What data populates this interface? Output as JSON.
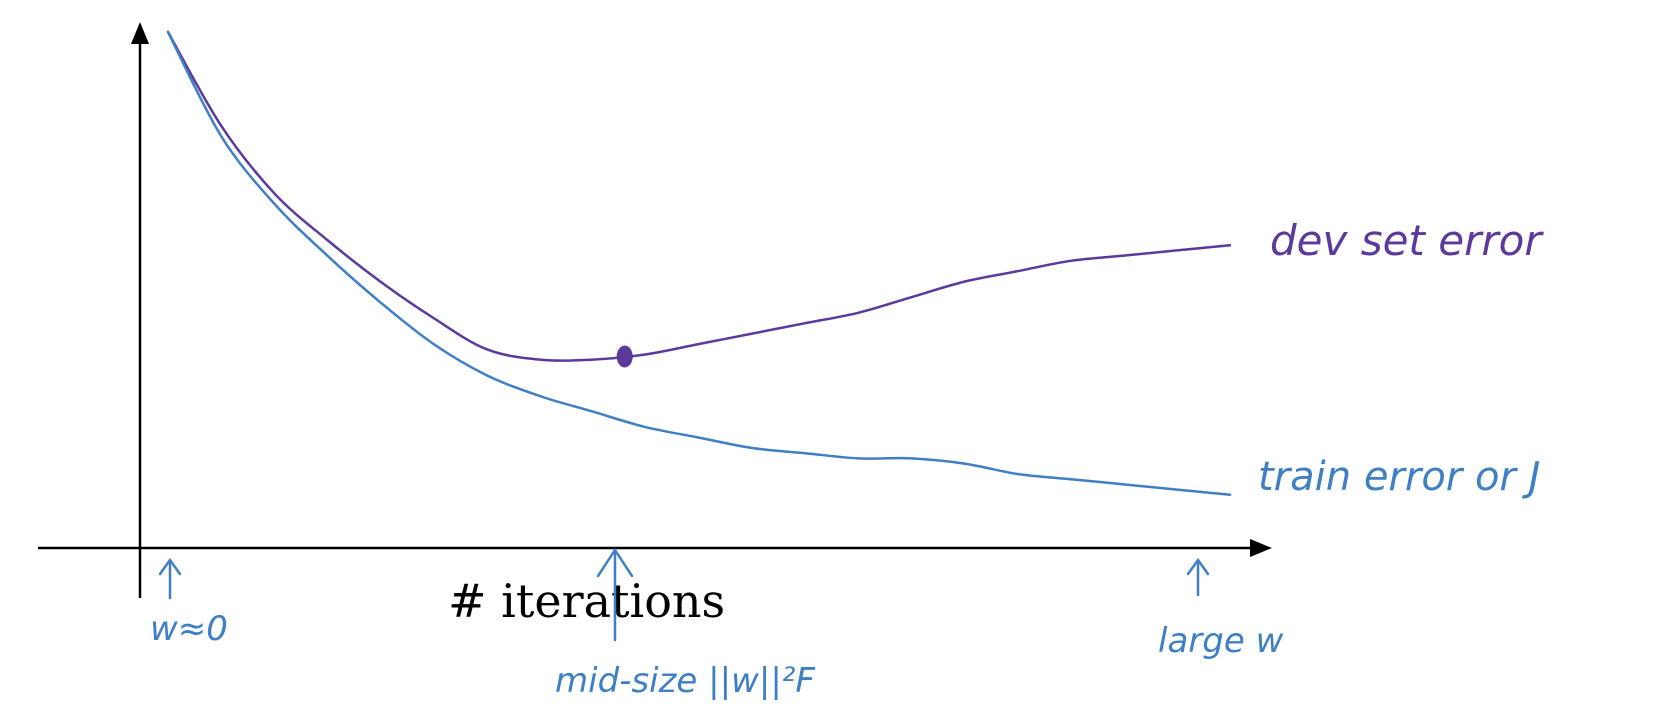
{
  "chart_data": {
    "type": "line",
    "title": "",
    "xlabel": "# iterations",
    "ylabel": "",
    "grid": false,
    "x": [
      0,
      0.05,
      0.1,
      0.15,
      0.2,
      0.25,
      0.3,
      0.35,
      0.4,
      0.45,
      0.5,
      0.55,
      0.6,
      0.65,
      0.7,
      0.75,
      0.8,
      0.85,
      0.9,
      0.95,
      1.0
    ],
    "series": [
      {
        "name": "dev set error",
        "label_text": "dev set error",
        "color": "#5b3a9c",
        "values": [
          1.0,
          0.82,
          0.69,
          0.6,
          0.52,
          0.45,
          0.39,
          0.37,
          0.37,
          0.38,
          0.4,
          0.42,
          0.44,
          0.46,
          0.49,
          0.52,
          0.54,
          0.56,
          0.57,
          0.58,
          0.59
        ]
      },
      {
        "name": "train error or J",
        "label_text": "train error or J",
        "color": "#3f7fc4",
        "values": [
          1.0,
          0.8,
          0.67,
          0.57,
          0.48,
          0.4,
          0.34,
          0.3,
          0.27,
          0.24,
          0.22,
          0.2,
          0.19,
          0.18,
          0.18,
          0.17,
          0.15,
          0.14,
          0.13,
          0.12,
          0.11
        ]
      }
    ],
    "annotations": [
      {
        "text": "w≈0",
        "x": 0.0
      },
      {
        "text": "mid-size ||w||²F",
        "x": 0.42
      },
      {
        "text": "large w",
        "x": 0.96
      }
    ],
    "highlight_point": {
      "series": "dev set error",
      "x": 0.43
    }
  }
}
